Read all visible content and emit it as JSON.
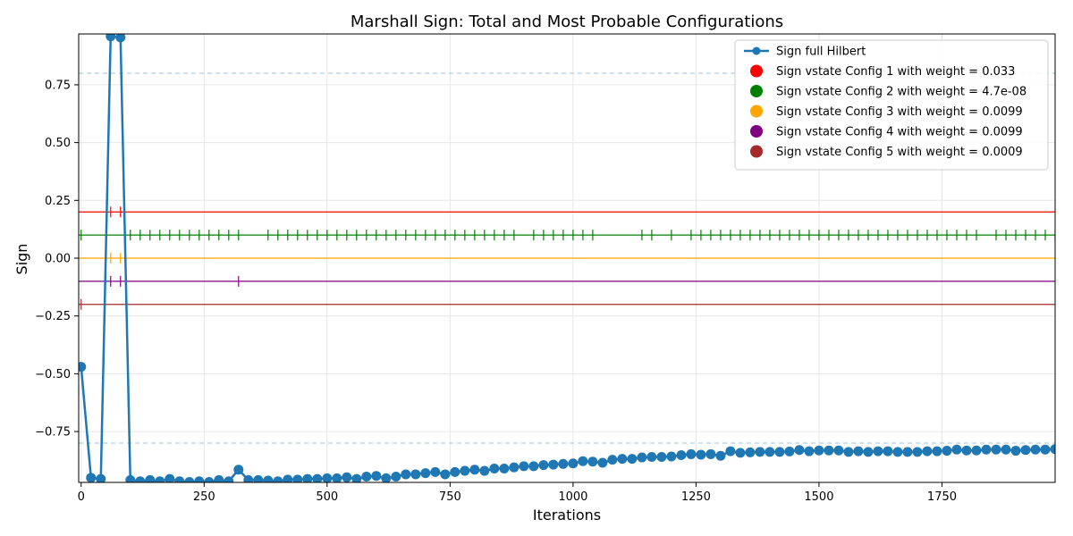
{
  "chart_data": {
    "type": "line",
    "title": "Marshall Sign: Total and Most Probable Configurations",
    "xlabel": "Iterations",
    "ylabel": "Sign",
    "xlim": [
      -5,
      1980
    ],
    "ylim": [
      -0.97,
      0.97
    ],
    "x_ticks": [
      0,
      250,
      500,
      750,
      1000,
      1250,
      1500,
      1750
    ],
    "y_ticks": [
      -0.75,
      -0.5,
      -0.25,
      0.0,
      0.25,
      0.5,
      0.75
    ],
    "x_tick_labels": [
      "0",
      "250",
      "500",
      "750",
      "1000",
      "1250",
      "1500",
      "1750"
    ],
    "y_tick_labels": [
      "−0.75",
      "−0.50",
      "−0.25",
      "0.00",
      "0.25",
      "0.50",
      "0.75"
    ],
    "grid": true,
    "legend_position": "top-right",
    "reference_lines": [
      0.8,
      -0.8
    ],
    "full_hilbert": {
      "name": "Sign full Hilbert",
      "color": "#1f77b4",
      "x": [
        0,
        20,
        40,
        60,
        80,
        100,
        120,
        140,
        160,
        180,
        200,
        220,
        240,
        260,
        280,
        300,
        320,
        340,
        360,
        380,
        400,
        420,
        440,
        460,
        480,
        500,
        520,
        540,
        560,
        580,
        600,
        620,
        640,
        660,
        680,
        700,
        720,
        740,
        760,
        780,
        800,
        820,
        840,
        860,
        880,
        900,
        920,
        940,
        960,
        980,
        1000,
        1020,
        1040,
        1060,
        1080,
        1100,
        1120,
        1140,
        1160,
        1180,
        1200,
        1220,
        1240,
        1260,
        1280,
        1300,
        1320,
        1340,
        1360,
        1380,
        1400,
        1420,
        1440,
        1460,
        1480,
        1500,
        1520,
        1540,
        1560,
        1580,
        1600,
        1620,
        1640,
        1660,
        1680,
        1700,
        1720,
        1740,
        1760,
        1780,
        1800,
        1820,
        1840,
        1860,
        1880,
        1900,
        1920,
        1940,
        1960,
        1980
      ],
      "values": [
        -0.47,
        -0.95,
        -0.955,
        0.96,
        0.955,
        -0.96,
        -0.965,
        -0.96,
        -0.965,
        -0.955,
        -0.965,
        -0.968,
        -0.965,
        -0.968,
        -0.96,
        -0.965,
        -0.915,
        -0.96,
        -0.96,
        -0.962,
        -0.965,
        -0.958,
        -0.958,
        -0.955,
        -0.955,
        -0.952,
        -0.952,
        -0.948,
        -0.955,
        -0.945,
        -0.942,
        -0.952,
        -0.945,
        -0.935,
        -0.935,
        -0.93,
        -0.925,
        -0.935,
        -0.925,
        -0.92,
        -0.915,
        -0.92,
        -0.91,
        -0.91,
        -0.905,
        -0.9,
        -0.9,
        -0.895,
        -0.893,
        -0.89,
        -0.888,
        -0.878,
        -0.88,
        -0.885,
        -0.872,
        -0.868,
        -0.868,
        -0.862,
        -0.86,
        -0.86,
        -0.858,
        -0.852,
        -0.848,
        -0.85,
        -0.848,
        -0.855,
        -0.835,
        -0.842,
        -0.84,
        -0.838,
        -0.838,
        -0.838,
        -0.836,
        -0.83,
        -0.835,
        -0.832,
        -0.832,
        -0.832,
        -0.838,
        -0.835,
        -0.838,
        -0.835,
        -0.835,
        -0.838,
        -0.838,
        -0.838,
        -0.835,
        -0.835,
        -0.833,
        -0.828,
        -0.832,
        -0.832,
        -0.828,
        -0.828,
        -0.828,
        -0.833,
        -0.83,
        -0.828,
        -0.828,
        -0.826
      ]
    },
    "configs": [
      {
        "name": "Sign vstate Config 1 with weight = 0.033",
        "color": "#ff0000",
        "offset": 0.2,
        "tick_x": [
          60,
          80
        ]
      },
      {
        "name": "Sign vstate Config 2 with weight = 4.7e-08",
        "color": "#008000",
        "offset": 0.1,
        "tick_x": [
          0,
          100,
          120,
          140,
          160,
          180,
          200,
          220,
          240,
          260,
          280,
          300,
          320,
          380,
          400,
          420,
          440,
          460,
          480,
          500,
          520,
          540,
          560,
          580,
          600,
          620,
          640,
          660,
          680,
          700,
          720,
          740,
          760,
          780,
          800,
          820,
          840,
          860,
          880,
          920,
          940,
          960,
          980,
          1000,
          1020,
          1040,
          1140,
          1160,
          1200,
          1240,
          1260,
          1280,
          1300,
          1320,
          1340,
          1360,
          1380,
          1400,
          1420,
          1440,
          1460,
          1480,
          1500,
          1520,
          1540,
          1560,
          1580,
          1600,
          1620,
          1640,
          1660,
          1680,
          1700,
          1720,
          1740,
          1760,
          1780,
          1800,
          1820,
          1860,
          1880,
          1900,
          1920,
          1940,
          1960,
          1980
        ]
      },
      {
        "name": "Sign vstate Config 3 with weight = 0.0099",
        "color": "#ffa500",
        "offset": 0.0,
        "tick_x": [
          60,
          80
        ]
      },
      {
        "name": "Sign vstate Config 4 with weight = 0.0099",
        "color": "#800080",
        "offset": -0.1,
        "tick_x": [
          60,
          80,
          320
        ]
      },
      {
        "name": "Sign vstate Config 5 with weight = 0.0009",
        "color": "#a52a2a",
        "offset": -0.2,
        "tick_x": [
          0
        ]
      }
    ]
  }
}
